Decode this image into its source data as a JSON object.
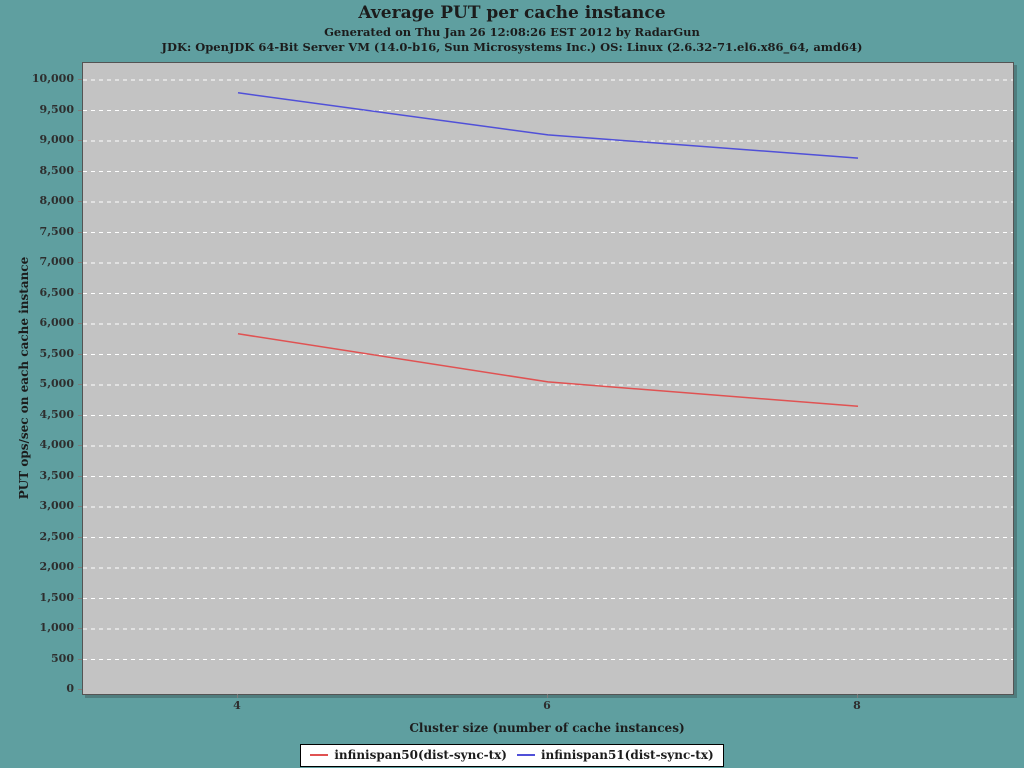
{
  "header": {
    "title": "Average PUT per cache instance",
    "subtitle1": "Generated on Thu Jan 26 12:08:26 EST 2012 by RadarGun",
    "subtitle2": "JDK: OpenJDK 64-Bit Server VM (14.0-b16, Sun Microsystems Inc.) OS: Linux (2.6.32-71.el6.x86_64, amd64)"
  },
  "chart_data": {
    "type": "line",
    "title": "Average PUT per cache instance",
    "xlabel": "Cluster size (number of cache instances)",
    "ylabel": "PUT ops/sec on each cache instance",
    "x": [
      4,
      6,
      8
    ],
    "xticks": [
      4,
      6,
      8
    ],
    "xlim": [
      3,
      9
    ],
    "ylim": [
      0,
      10000
    ],
    "ytick_step": 500,
    "grid": "horizontal-dashed",
    "legend_position": "bottom-center",
    "series": [
      {
        "name": "infinispan50(dist-sync-tx)",
        "color": "#e05252",
        "values": [
          5840,
          5050,
          4650
        ]
      },
      {
        "name": "infinispan51(dist-sync-tx)",
        "color": "#5050d8",
        "values": [
          9790,
          9100,
          8720
        ]
      }
    ]
  },
  "colors": {
    "background": "#5f9fa0",
    "plot_background": "#c3c3c3",
    "gridline": "#ffffff",
    "tick": "#7d7d7d",
    "text": "#1c1c1c",
    "legend_background": "#ffffff",
    "legend_border": "#000000"
  }
}
